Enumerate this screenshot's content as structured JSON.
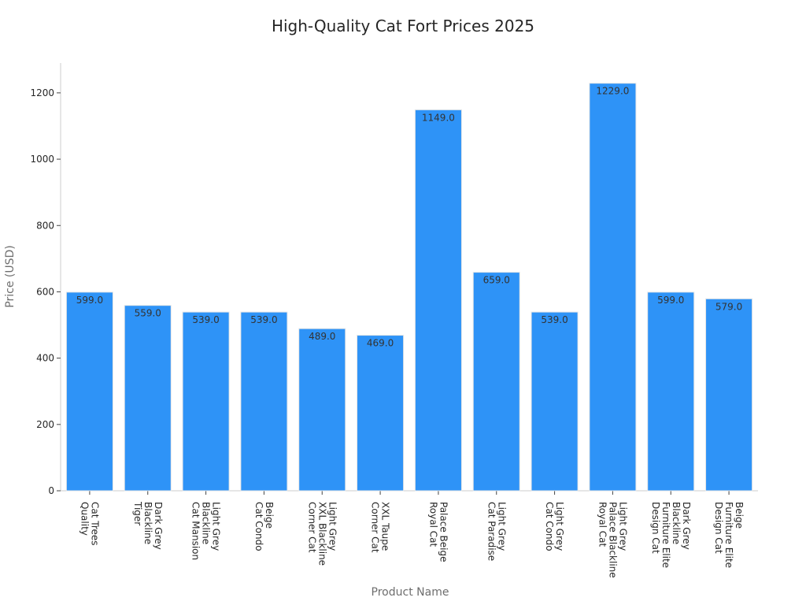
{
  "chart_data": {
    "type": "bar",
    "title": "High-Quality Cat Fort Prices 2025",
    "xlabel": "Product Name",
    "ylabel": "Price (USD)",
    "ylim": [
      0,
      1290
    ],
    "yticks": [
      0,
      200,
      400,
      600,
      800,
      1000,
      1200
    ],
    "categories": [
      [
        "Quality",
        "Cat Trees"
      ],
      [
        "Tiger",
        "Blackline",
        "Dark Grey"
      ],
      [
        "Cat Mansion",
        "Blackline",
        "Light Grey"
      ],
      [
        "Cat Condo",
        "Beige"
      ],
      [
        "Corner Cat",
        "XXL Blackline",
        "Light Grey"
      ],
      [
        "Corner Cat",
        "XXL Taupe"
      ],
      [
        "Royal Cat",
        "Palace Beige"
      ],
      [
        "Cat Paradise",
        "Light Grey"
      ],
      [
        "Cat Condo",
        "Light Grey"
      ],
      [
        "Royal Cat",
        "Palace Blackline",
        "Light Grey"
      ],
      [
        "Design Cat",
        "Furniture Elite",
        "Blackline",
        "Dark Grey"
      ],
      [
        "Design Cat",
        "Furniture Elite",
        "Beige"
      ]
    ],
    "values": [
      599.0,
      559.0,
      539.0,
      539.0,
      489.0,
      469.0,
      1149.0,
      659.0,
      539.0,
      1229.0,
      599.0,
      579.0
    ],
    "value_labels": [
      "599.0",
      "559.0",
      "539.0",
      "539.0",
      "489.0",
      "469.0",
      "1149.0",
      "659.0",
      "539.0",
      "1229.0",
      "599.0",
      "579.0"
    ],
    "bar_color": "#2e93f7",
    "grid": false,
    "legend": "none"
  }
}
